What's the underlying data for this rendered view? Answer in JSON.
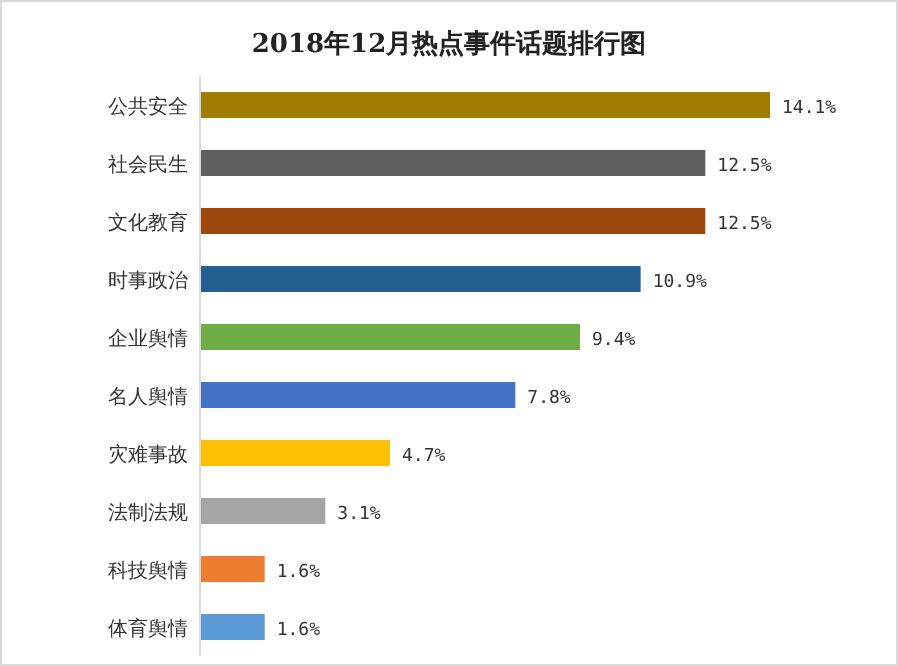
{
  "chart_data": {
    "type": "bar",
    "orientation": "horizontal",
    "title": "2018年12月热点事件话题排行图",
    "categories": [
      "公共安全",
      "社会民生",
      "文化教育",
      "时事政治",
      "企业舆情",
      "名人舆情",
      "灾难事故",
      "法制法规",
      "科技舆情",
      "体育舆情"
    ],
    "values": [
      14.1,
      12.5,
      12.5,
      10.9,
      9.4,
      7.8,
      4.7,
      3.1,
      1.6,
      1.6
    ],
    "value_labels": [
      "14.1%",
      "12.5%",
      "12.5%",
      "10.9%",
      "9.4%",
      "7.8%",
      "4.7%",
      "3.1%",
      "1.6%",
      "1.6%"
    ],
    "colors": [
      "#a07c00",
      "#5f5f5f",
      "#9e480e",
      "#255e91",
      "#70ad47",
      "#4472c4",
      "#ffc000",
      "#a5a5a5",
      "#ed7d31",
      "#5b9bd5"
    ]
  }
}
